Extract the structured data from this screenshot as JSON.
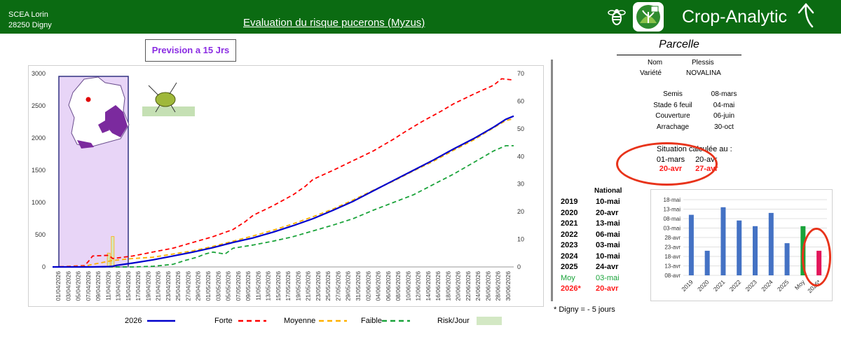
{
  "header": {
    "farm_name": "SCEA Lorin",
    "farm_location": "28250 Digny",
    "title": "Evaluation du risque pucerons (Myzus)",
    "brand": "Crop-Analytic"
  },
  "forecast_label": "Prevision a 15 Jrs",
  "colors": {
    "header_bg": "#0b6b12",
    "s2026": "#0000cc",
    "forte": "#ff0000",
    "moyenne": "#ffb000",
    "faible": "#1aa33a",
    "risk": "#d3e8c4",
    "highlight": "#e8331a"
  },
  "legend": {
    "s2026": "2026",
    "forte": "Forte",
    "moyenne": "Moyenne",
    "faible": "Faible",
    "risk": "Risk/Jour"
  },
  "chart_data": [
    {
      "type": "line",
      "title": "Evaluation du risque pucerons (Myzus)",
      "x_tick_labels": [
        "01/04/2026",
        "03/04/2026",
        "05/04/2026",
        "07/04/2026",
        "09/04/2026",
        "11/04/2026",
        "13/04/2026",
        "15/04/2026",
        "17/04/2026",
        "19/04/2026",
        "21/04/2026",
        "23/04/2026",
        "25/04/2026",
        "27/04/2026",
        "29/04/2026",
        "01/05/2026",
        "03/05/2026",
        "05/05/2026",
        "07/05/2026",
        "09/05/2026",
        "11/05/2026",
        "13/05/2026",
        "15/05/2026",
        "17/05/2026",
        "19/05/2026",
        "21/05/2026",
        "23/05/2026",
        "25/05/2026",
        "27/05/2026",
        "29/05/2026",
        "31/05/2026",
        "02/06/2026",
        "04/06/2026",
        "06/06/2026",
        "08/06/2026",
        "10/06/2026",
        "12/06/2026",
        "14/06/2026",
        "16/06/2026",
        "18/06/2026",
        "20/06/2026",
        "22/06/2026",
        "24/06/2026",
        "26/06/2026",
        "28/06/2026",
        "30/06/2026"
      ],
      "y_left_range": [
        0,
        3000
      ],
      "y_left_ticks": [
        0,
        500,
        1000,
        1500,
        2000,
        2500,
        3000
      ],
      "y_right_range": [
        0,
        70
      ],
      "y_right_ticks": [
        0,
        10,
        20,
        30,
        40,
        50,
        60,
        70
      ],
      "x_days": 91,
      "series": [
        {
          "name": "2026",
          "points": [
            [
              0,
              0
            ],
            [
              10,
              0
            ],
            [
              14,
              5
            ],
            [
              15,
              10
            ],
            [
              16,
              25
            ],
            [
              20,
              60
            ],
            [
              25,
              110
            ],
            [
              30,
              170
            ],
            [
              35,
              230
            ],
            [
              40,
              300
            ],
            [
              45,
              380
            ],
            [
              50,
              450
            ],
            [
              55,
              540
            ],
            [
              60,
              640
            ],
            [
              65,
              750
            ],
            [
              70,
              880
            ],
            [
              75,
              1020
            ],
            [
              80,
              1180
            ],
            [
              85,
              1340
            ],
            [
              90,
              1500
            ],
            [
              95,
              1660
            ],
            [
              100,
              1830
            ],
            [
              105,
              1990
            ],
            [
              110,
              2170
            ],
            [
              113,
              2290
            ],
            [
              115,
              2340
            ]
          ]
        },
        {
          "name": "Forte",
          "points": [
            [
              0,
              0
            ],
            [
              8,
              20
            ],
            [
              9,
              90
            ],
            [
              10,
              170
            ],
            [
              14,
              180
            ],
            [
              15,
              130
            ],
            [
              20,
              170
            ],
            [
              25,
              230
            ],
            [
              30,
              290
            ],
            [
              35,
              380
            ],
            [
              40,
              470
            ],
            [
              45,
              580
            ],
            [
              48,
              700
            ],
            [
              50,
              800
            ],
            [
              55,
              950
            ],
            [
              60,
              1120
            ],
            [
              63,
              1250
            ],
            [
              65,
              1360
            ],
            [
              70,
              1500
            ],
            [
              75,
              1650
            ],
            [
              80,
              1800
            ],
            [
              85,
              1980
            ],
            [
              88,
              2100
            ],
            [
              92,
              2250
            ],
            [
              97,
              2420
            ],
            [
              100,
              2530
            ],
            [
              105,
              2680
            ],
            [
              110,
              2820
            ],
            [
              112,
              2920
            ],
            [
              115,
              2900
            ]
          ]
        },
        {
          "name": "Moyenne",
          "points": [
            [
              0,
              0
            ],
            [
              8,
              10
            ],
            [
              10,
              40
            ],
            [
              15,
              100
            ],
            [
              20,
              130
            ],
            [
              25,
              150
            ],
            [
              30,
              200
            ],
            [
              35,
              250
            ],
            [
              40,
              320
            ],
            [
              45,
              400
            ],
            [
              50,
              480
            ],
            [
              55,
              570
            ],
            [
              60,
              670
            ],
            [
              65,
              780
            ],
            [
              70,
              900
            ],
            [
              75,
              1040
            ],
            [
              80,
              1190
            ],
            [
              85,
              1330
            ],
            [
              90,
              1490
            ],
            [
              95,
              1640
            ],
            [
              100,
              1810
            ],
            [
              105,
              1970
            ],
            [
              110,
              2160
            ],
            [
              113,
              2270
            ],
            [
              115,
              2300
            ]
          ]
        },
        {
          "name": "Faible",
          "points": [
            [
              0,
              0
            ],
            [
              14,
              0
            ],
            [
              16,
              0
            ],
            [
              20,
              0
            ],
            [
              25,
              10
            ],
            [
              30,
              40
            ],
            [
              33,
              100
            ],
            [
              36,
              150
            ],
            [
              38,
              200
            ],
            [
              40,
              230
            ],
            [
              43,
              200
            ],
            [
              45,
              290
            ],
            [
              50,
              340
            ],
            [
              55,
              400
            ],
            [
              60,
              470
            ],
            [
              65,
              560
            ],
            [
              70,
              650
            ],
            [
              75,
              750
            ],
            [
              80,
              880
            ],
            [
              85,
              1000
            ],
            [
              90,
              1120
            ],
            [
              95,
              1280
            ],
            [
              100,
              1440
            ],
            [
              105,
              1620
            ],
            [
              110,
              1800
            ],
            [
              113,
              1880
            ],
            [
              115,
              1880
            ]
          ]
        }
      ],
      "risk_bars": {
        "name": "Risk/Jour",
        "axis": "right",
        "points": [
          [
            14,
            5
          ],
          [
            15,
            11
          ]
        ]
      }
    },
    {
      "type": "bar",
      "categories": [
        "2019",
        "2020",
        "2021",
        "2022",
        "2023",
        "2024",
        "2025",
        "Moy",
        "2026*"
      ],
      "value_day_of_year": [
        130,
        111,
        134,
        127,
        124,
        131,
        115,
        124,
        111
      ],
      "y_tick_labels": [
        "08-avr",
        "13-avr",
        "18-avr",
        "23-avr",
        "28-avr",
        "03-mai",
        "08-mai",
        "13-mai",
        "18-mai"
      ],
      "y_range_day_of_year": [
        98,
        138
      ],
      "bar_colors": [
        "#4472c4",
        "#4472c4",
        "#4472c4",
        "#4472c4",
        "#4472c4",
        "#4472c4",
        "#4472c4",
        "#1aa33a",
        "#e3165b"
      ]
    }
  ],
  "parcelle": {
    "title": "Parcelle",
    "nom_label": "Nom",
    "nom_value": "Plessis",
    "variete_label": "Variété",
    "variete_value": "NOVALINA",
    "dates": [
      {
        "label": "Semis",
        "value": "08-mars"
      },
      {
        "label": "Stade 6 feuil",
        "value": "04-mai"
      },
      {
        "label": "Couverture",
        "value": "06-juin"
      },
      {
        "label": "Arrachage",
        "value": "30-oct"
      }
    ]
  },
  "situation": {
    "label": "Situation calculée au :",
    "d1": "01-mars",
    "d2": "20-avr",
    "d3": "20-avr",
    "d4": "27-avr"
  },
  "national": {
    "header": "National",
    "rows": [
      {
        "year": "2019",
        "date": "10-mai"
      },
      {
        "year": "2020",
        "date": "20-avr"
      },
      {
        "year": "2021",
        "date": "13-mai"
      },
      {
        "year": "2022",
        "date": "06-mai"
      },
      {
        "year": "2023",
        "date": "03-mai"
      },
      {
        "year": "2024",
        "date": "10-mai"
      },
      {
        "year": "2025",
        "date": "24-avr"
      },
      {
        "year": "Moy",
        "date": "03-mai"
      },
      {
        "year": "2026*",
        "date": "20-avr"
      }
    ]
  },
  "footnote": "* Digny = - 5 jours"
}
